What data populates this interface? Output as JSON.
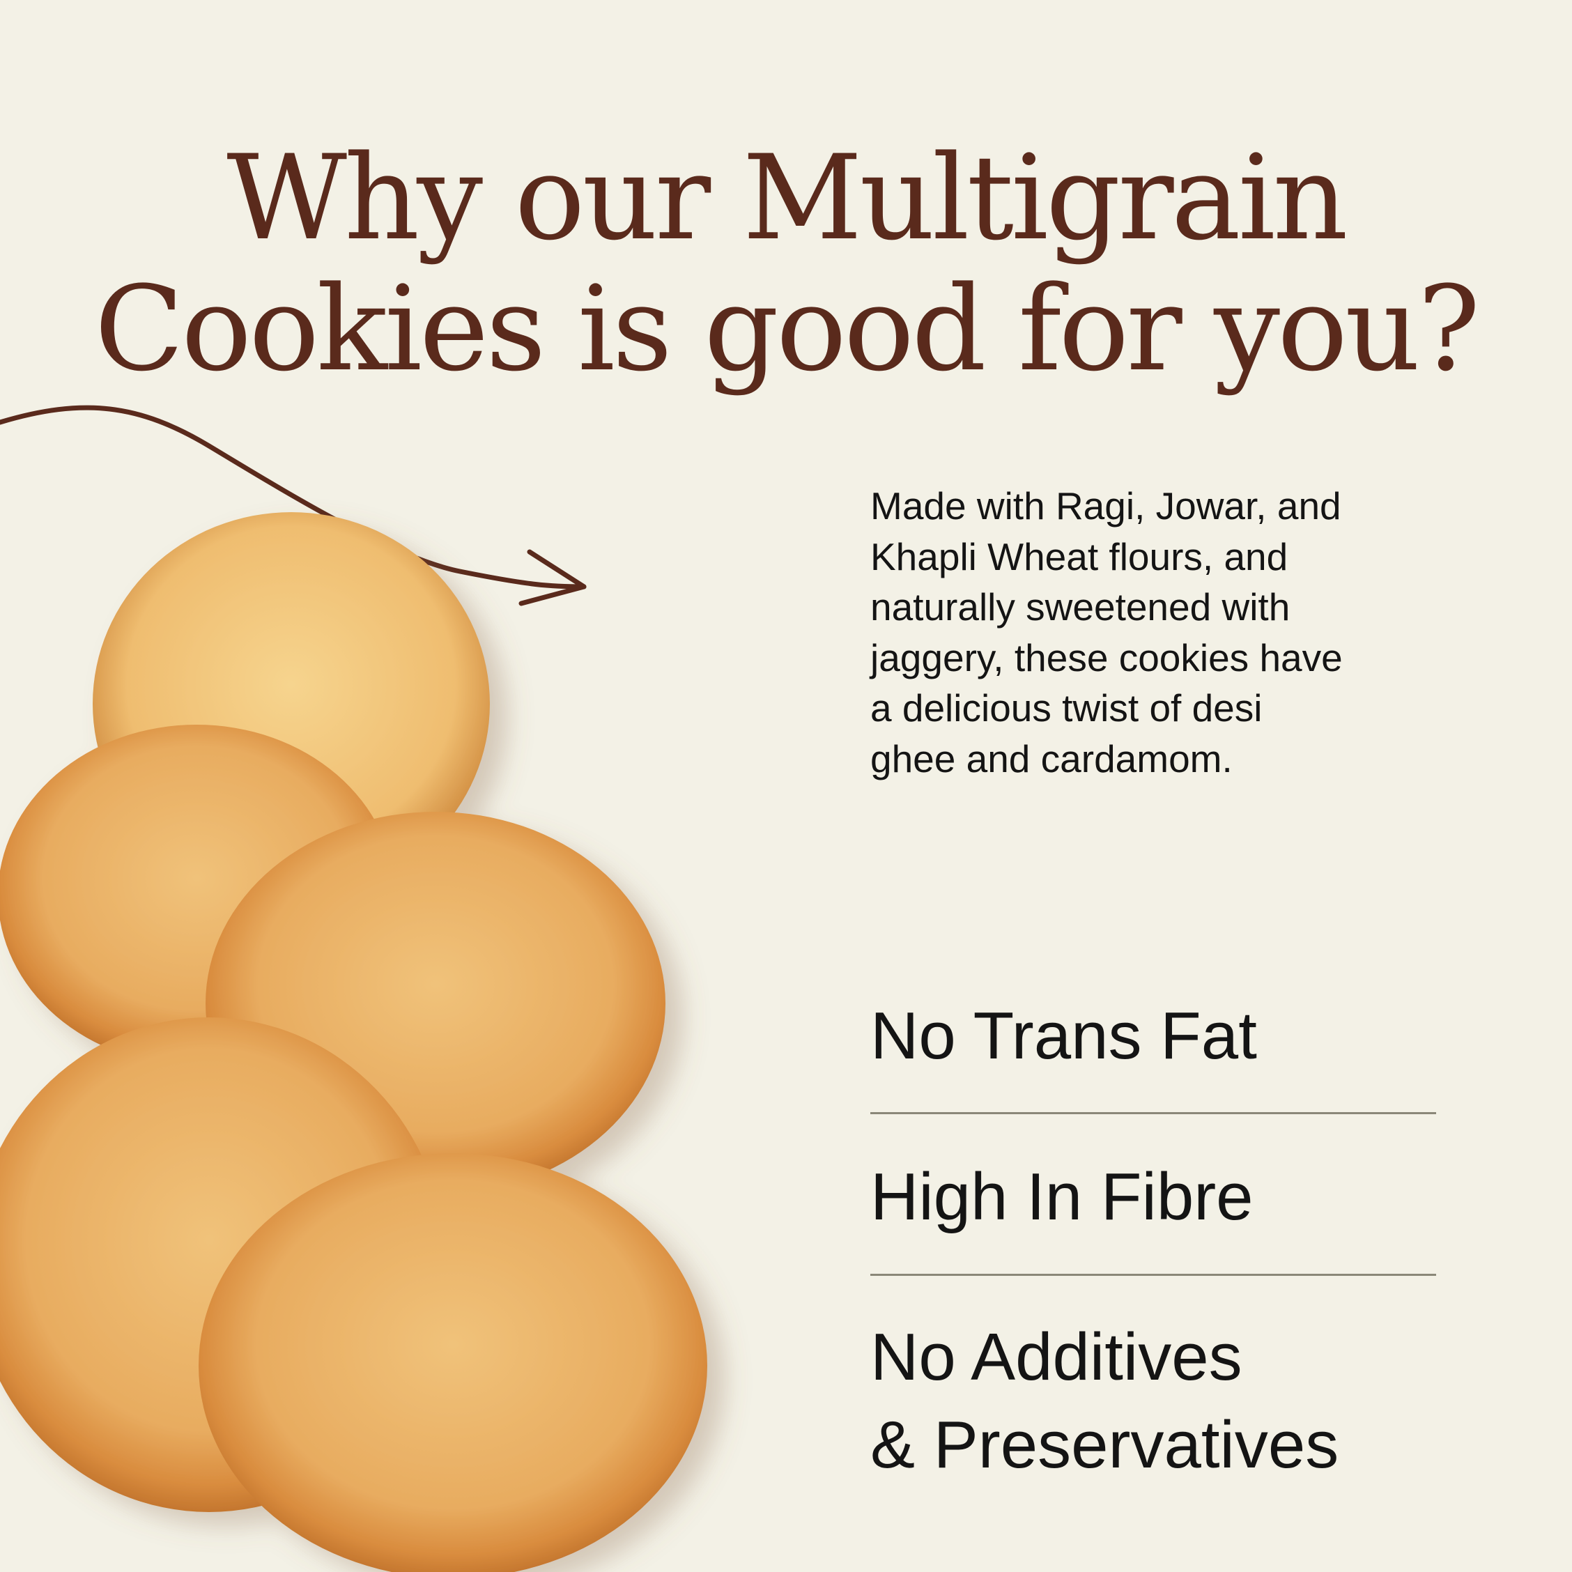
{
  "title": {
    "line1": "Why our Multigrain",
    "line2": "Cookies is good for you?"
  },
  "description": {
    "lines": [
      "Made with Ragi, Jowar, and",
      "Khapli Wheat flours, and",
      "naturally sweetened with",
      "jaggery, these cookies have",
      "a delicious twist of desi",
      "ghee and cardamom."
    ]
  },
  "features": [
    {
      "label": "No Trans Fat"
    },
    {
      "label": "High In Fibre"
    },
    {
      "label": "No Additives",
      "label2": "& Preservatives"
    }
  ],
  "colors": {
    "background": "#f3f1e6",
    "title": "#5a2a1c",
    "text": "#141414",
    "divider": "#8a8778",
    "cookie": "#e0a055"
  },
  "icons": [
    "curved-arrow-icon"
  ]
}
